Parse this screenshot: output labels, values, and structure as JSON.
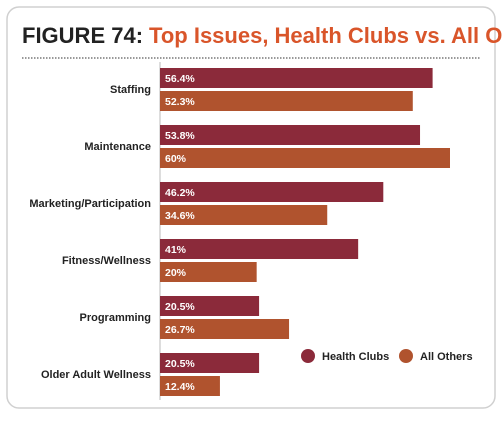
{
  "chart_data": {
    "type": "hbar",
    "figure_label": "FIGURE 74:",
    "title": "Top Issues, Health Clubs vs. All Others",
    "categories": [
      "Staffing",
      "Maintenance",
      "Marketing/Participation",
      "Fitness/Wellness",
      "Programming",
      "Older Adult Wellness"
    ],
    "series": [
      {
        "name": "Health Clubs",
        "color": "#8b2a3a",
        "values": [
          56.4,
          53.8,
          46.2,
          41,
          20.5,
          20.5
        ],
        "value_labels": [
          "56.4%",
          "53.8%",
          "46.2%",
          "41%",
          "20.5%",
          "20.5%"
        ]
      },
      {
        "name": "All Others",
        "color": "#b0532e",
        "values": [
          52.3,
          60,
          34.6,
          20,
          26.7,
          12.4
        ],
        "value_labels": [
          "52.3%",
          "60%",
          "34.6%",
          "20%",
          "26.7%",
          "12.4%"
        ]
      }
    ],
    "legend": "bottom-right"
  }
}
